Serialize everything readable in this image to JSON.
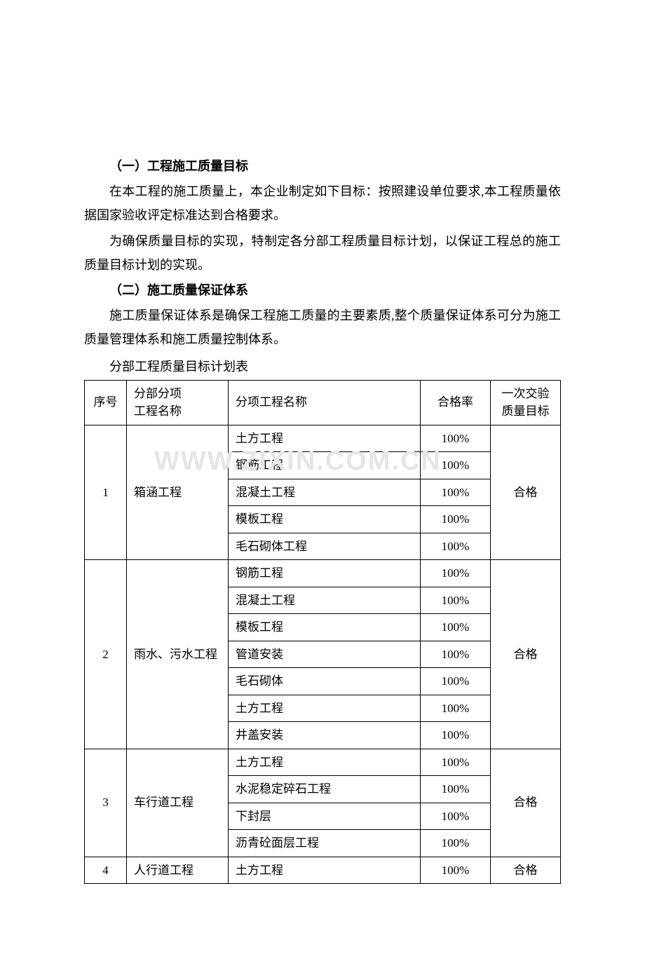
{
  "headings": {
    "h1": "（一）工程施工质量目标",
    "h2": "（二）施工质量保证体系"
  },
  "paragraphs": {
    "p1": "在本工程的施工质量上，本企业制定如下目标：按照建设单位要求,本工程质量依据国家验收评定标准达到合格要求。",
    "p2": "为确保质量目标的实现，特制定各分部工程质量目标计划，以保证工程总的施工质量目标计划的实现。",
    "p3": "施工质量保证体系是确保工程施工质量的主要素质,整个质量保证体系可分为施工质量管理体系和施工质量控制体系。"
  },
  "table_caption": "分部工程质量目标计划表",
  "watermark_text": "WWW.ZIXIN.COM.CN",
  "table": {
    "headers": {
      "col1": "序号",
      "col2_line1": "分部分项",
      "col2_line2": "工程名称",
      "col3": "分项工程名称",
      "col4": "合格率",
      "col5_line1": "一次交验",
      "col5_line2": "质量目标"
    },
    "groups": [
      {
        "index": "1",
        "category": "箱涵工程",
        "goal": "合格",
        "items": [
          {
            "name": "土方工程",
            "rate": "100%"
          },
          {
            "name": "钢筋工程",
            "rate": "100%"
          },
          {
            "name": "混凝土工程",
            "rate": "100%"
          },
          {
            "name": "模板工程",
            "rate": "100%"
          },
          {
            "name": "毛石砌体工程",
            "rate": "100%"
          }
        ]
      },
      {
        "index": "2",
        "category": "雨水、污水工程",
        "goal": "合格",
        "items": [
          {
            "name": "钢筋工程",
            "rate": "100%"
          },
          {
            "name": "混凝土工程",
            "rate": "100%"
          },
          {
            "name": "模板工程",
            "rate": "100%"
          },
          {
            "name": "管道安装",
            "rate": "100%"
          },
          {
            "name": "毛石砌体",
            "rate": "100%"
          },
          {
            "name": "土方工程",
            "rate": "100%"
          },
          {
            "name": "井盖安装",
            "rate": "100%"
          }
        ]
      },
      {
        "index": "3",
        "category": "车行道工程",
        "goal": "合格",
        "items": [
          {
            "name": "土方工程",
            "rate": "100%"
          },
          {
            "name": "水泥稳定碎石工程",
            "rate": "100%"
          },
          {
            "name": "下封层",
            "rate": "100%"
          },
          {
            "name": "沥青砼面层工程",
            "rate": "100%"
          }
        ]
      },
      {
        "index": "4",
        "category": "人行道工程",
        "goal": "合格",
        "items": [
          {
            "name": "土方工程",
            "rate": "100%"
          }
        ]
      }
    ]
  }
}
